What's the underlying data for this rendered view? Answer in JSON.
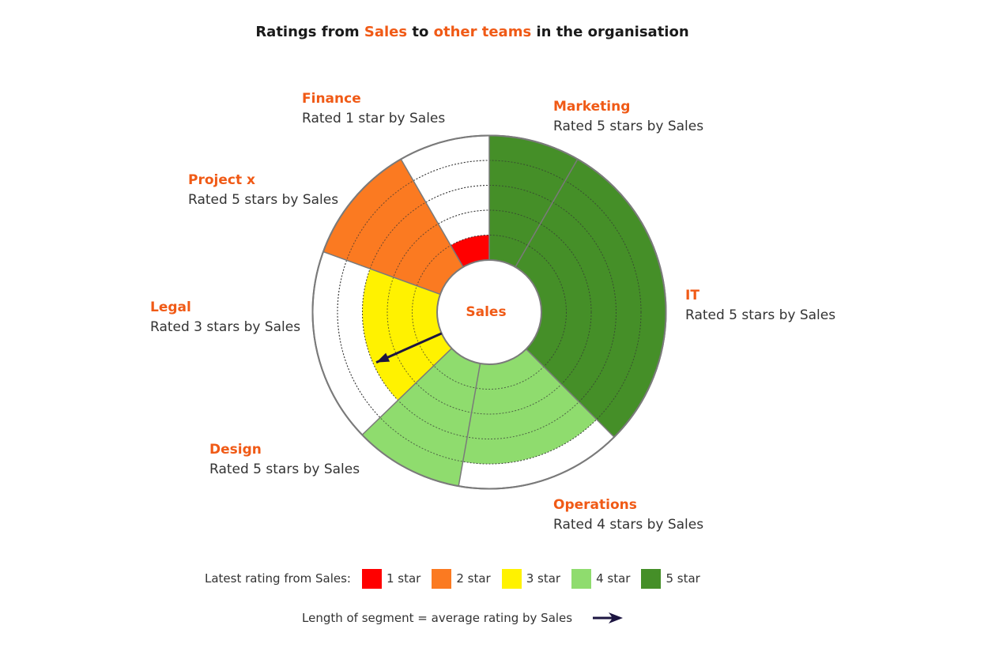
{
  "title": {
    "p1": "Ratings from ",
    "p2": "Sales",
    "p3": " to ",
    "p4": "other teams",
    "p5": " in the organisation"
  },
  "center_label": "Sales",
  "colors": {
    "star_1": "#ff0000",
    "star_2": "#fb7a21",
    "star_3": "#fff200",
    "star_4": "#8fdc6e",
    "star_5": "#458f28",
    "accent": "#f05a16",
    "arrow": "#1c1541"
  },
  "chart_data": {
    "type": "radial-bar",
    "center": "Sales",
    "max_rating": 5,
    "teams": [
      {
        "name": "Marketing",
        "rating_text": "Rated 5 stars by Sales",
        "latest_rating": 5,
        "average_rating": 5,
        "start_deg": 0,
        "end_deg": 30
      },
      {
        "name": "IT",
        "rating_text": "Rated 5 stars by Sales",
        "latest_rating": 5,
        "average_rating": 5,
        "start_deg": 30,
        "end_deg": 135
      },
      {
        "name": "Operations",
        "rating_text": "Rated 4 stars by Sales",
        "latest_rating": 4,
        "average_rating": 4,
        "start_deg": 135,
        "end_deg": 190
      },
      {
        "name": "Design",
        "rating_text": "Rated 5 stars by Sales",
        "latest_rating": 4,
        "average_rating": 5,
        "start_deg": 190,
        "end_deg": 226
      },
      {
        "name": "Legal",
        "rating_text": "Rated 3 stars by Sales",
        "latest_rating": 3,
        "average_rating": 3,
        "start_deg": 226,
        "end_deg": 290
      },
      {
        "name": "Project x",
        "rating_text": "Rated 5 stars by Sales",
        "latest_rating": 2,
        "average_rating": 5,
        "start_deg": 290,
        "end_deg": 330
      },
      {
        "name": "Finance",
        "rating_text": "Rated 1 star by Sales",
        "latest_rating": 1,
        "average_rating": 1,
        "start_deg": 330,
        "end_deg": 360
      }
    ]
  },
  "legend": {
    "label": "Latest rating from Sales:",
    "items": [
      {
        "label": "1 star",
        "color": "#ff0000"
      },
      {
        "label": "2 star",
        "color": "#fb7a21"
      },
      {
        "label": "3 star",
        "color": "#fff200"
      },
      {
        "label": "4 star",
        "color": "#8fdc6e"
      },
      {
        "label": "5 star",
        "color": "#458f28"
      }
    ]
  },
  "footnote": "Length of segment = average rating by Sales"
}
